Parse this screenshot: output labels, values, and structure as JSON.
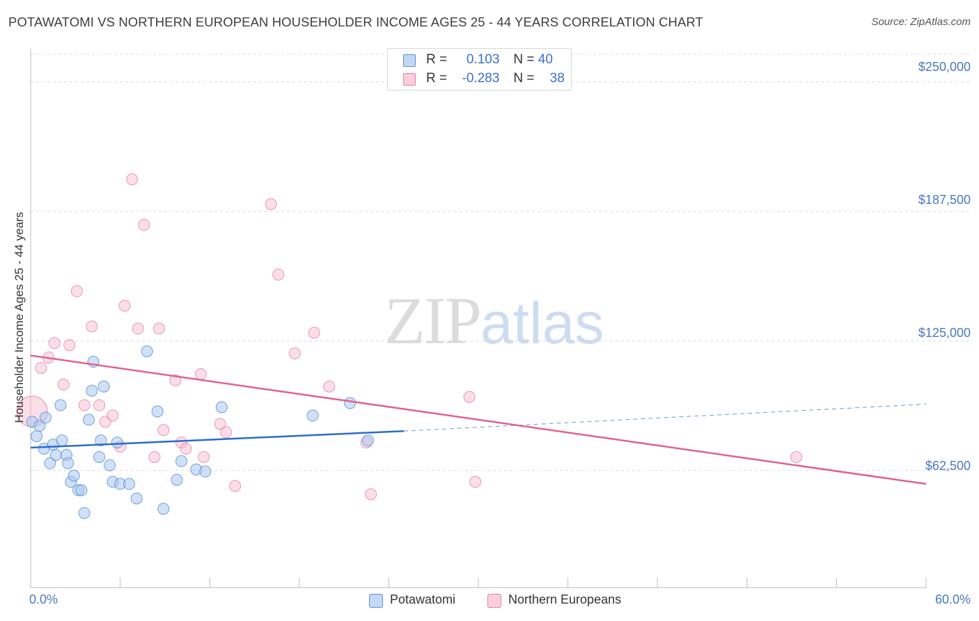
{
  "header": {
    "title": "POTAWATOMI VS NORTHERN EUROPEAN HOUSEHOLDER INCOME AGES 25 - 44 YEARS CORRELATION CHART",
    "source": "Source: ZipAtlas.com"
  },
  "watermark": {
    "zip": "ZIP",
    "atlas": "atlas"
  },
  "legend": {
    "rows": [
      {
        "r_label": "R =",
        "r_value": "0.103",
        "n_label": "N =",
        "n_value": "40",
        "color": "#a9c8f0"
      },
      {
        "r_label": "R =",
        "r_value": "-0.283",
        "n_label": "N =",
        "n_value": "38",
        "color": "#f6b6cb"
      }
    ]
  },
  "bottom_legend": [
    {
      "label": "Potawatomi",
      "color": "#a9c8f0"
    },
    {
      "label": "Northern Europeans",
      "color": "#f6b6cb"
    }
  ],
  "colors": {
    "blue_fill": "#a9c8f0",
    "blue_stroke": "#5b8fd6",
    "blue_line": "#2a6ccc",
    "pink_fill": "#f6b6cb",
    "pink_stroke": "#e37fa2",
    "pink_line": "#e0628e",
    "tick_label": "#4a78c2",
    "grid": "#d8d8d8"
  },
  "chart_data": {
    "type": "scatter",
    "title": "POTAWATOMI VS NORTHERN EUROPEAN HOUSEHOLDER INCOME AGES 25 - 44 YEARS CORRELATION CHART",
    "xlabel": "",
    "ylabel": "Householder Income Ages 25 - 44 years",
    "xlim": [
      0,
      60
    ],
    "ylim": [
      6000,
      266000
    ],
    "x_tick_labels": [
      "0.0%",
      "60.0%"
    ],
    "y_ticks": [
      62500,
      125000,
      187500,
      250000
    ],
    "y_tick_labels": [
      "$62,500",
      "$125,000",
      "$187,500",
      "$250,000"
    ],
    "grid": true,
    "legend_position": "top-center",
    "series": [
      {
        "name": "Potawatomi",
        "r": 0.103,
        "n": 40,
        "trend": {
          "x": [
            0,
            25
          ],
          "y": [
            73500,
            81500
          ],
          "extend_to": 60,
          "extend_y": 94500
        },
        "points": [
          [
            0.1,
            86000
          ],
          [
            0.4,
            79000
          ],
          [
            0.6,
            84000
          ],
          [
            0.9,
            73000
          ],
          [
            1.0,
            88000
          ],
          [
            1.3,
            66000
          ],
          [
            1.5,
            75000
          ],
          [
            1.7,
            70000
          ],
          [
            2.0,
            94000
          ],
          [
            2.1,
            77000
          ],
          [
            2.4,
            70000
          ],
          [
            2.5,
            66000
          ],
          [
            2.7,
            57000
          ],
          [
            2.9,
            60000
          ],
          [
            3.2,
            53000
          ],
          [
            3.4,
            53000
          ],
          [
            3.6,
            42000
          ],
          [
            3.9,
            87000
          ],
          [
            4.1,
            101000
          ],
          [
            4.2,
            115000
          ],
          [
            4.6,
            69000
          ],
          [
            4.7,
            77000
          ],
          [
            4.9,
            103000
          ],
          [
            5.3,
            65000
          ],
          [
            5.5,
            57000
          ],
          [
            5.8,
            76000
          ],
          [
            6.0,
            56000
          ],
          [
            6.6,
            56000
          ],
          [
            7.1,
            49000
          ],
          [
            7.8,
            120000
          ],
          [
            8.5,
            91000
          ],
          [
            8.9,
            44000
          ],
          [
            9.8,
            58000
          ],
          [
            10.1,
            67000
          ],
          [
            11.1,
            63000
          ],
          [
            11.7,
            62000
          ],
          [
            12.8,
            93000
          ],
          [
            18.9,
            89000
          ],
          [
            21.4,
            95000
          ],
          [
            22.6,
            77000
          ]
        ]
      },
      {
        "name": "Northern Europeans",
        "r": -0.283,
        "n": 38,
        "trend": {
          "x": [
            0,
            60
          ],
          "y": [
            118000,
            56000
          ]
        },
        "points": [
          [
            0.1,
            91000
          ],
          [
            0.7,
            112000
          ],
          [
            1.2,
            117000
          ],
          [
            1.6,
            124000
          ],
          [
            2.2,
            104000
          ],
          [
            2.6,
            123000
          ],
          [
            3.1,
            149000
          ],
          [
            3.6,
            94000
          ],
          [
            4.1,
            132000
          ],
          [
            4.6,
            94000
          ],
          [
            5.0,
            86000
          ],
          [
            5.5,
            89000
          ],
          [
            6.0,
            74000
          ],
          [
            6.3,
            142000
          ],
          [
            6.8,
            203000
          ],
          [
            7.2,
            131000
          ],
          [
            7.6,
            181000
          ],
          [
            8.3,
            69000
          ],
          [
            8.6,
            131000
          ],
          [
            8.9,
            82000
          ],
          [
            9.7,
            106000
          ],
          [
            10.1,
            76000
          ],
          [
            10.4,
            73000
          ],
          [
            11.4,
            109000
          ],
          [
            11.6,
            69000
          ],
          [
            12.7,
            85000
          ],
          [
            13.1,
            81000
          ],
          [
            13.7,
            55000
          ],
          [
            16.1,
            191000
          ],
          [
            16.6,
            157000
          ],
          [
            17.7,
            119000
          ],
          [
            19.0,
            129000
          ],
          [
            20.0,
            103000
          ],
          [
            22.5,
            76000
          ],
          [
            22.8,
            51000
          ],
          [
            29.4,
            98000
          ],
          [
            29.8,
            57000
          ],
          [
            51.3,
            69000
          ]
        ]
      }
    ]
  }
}
